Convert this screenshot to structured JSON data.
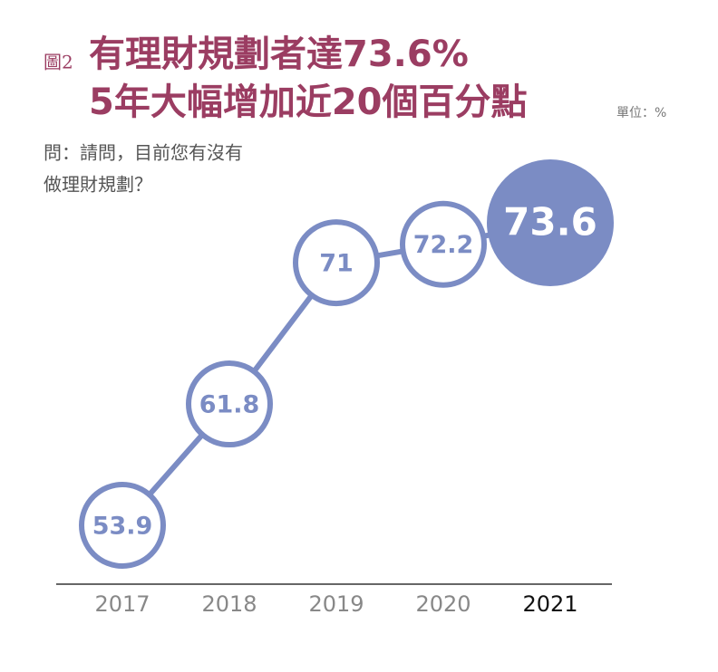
{
  "chart_data": {
    "type": "line",
    "figure_label": "圖2",
    "title": [
      "有理財規劃者達73.6%",
      "5年大幅增加近20個百分點"
    ],
    "unit": "單位：%",
    "question": [
      "問：請問，目前您有沒有",
      "做理財規劃？"
    ],
    "categories": [
      "2017",
      "2018",
      "2019",
      "2020",
      "2021"
    ],
    "values": [
      53.9,
      61.8,
      71,
      72.2,
      73.6
    ],
    "color": "#7b8cc4",
    "title_color": "#9b3d62"
  }
}
